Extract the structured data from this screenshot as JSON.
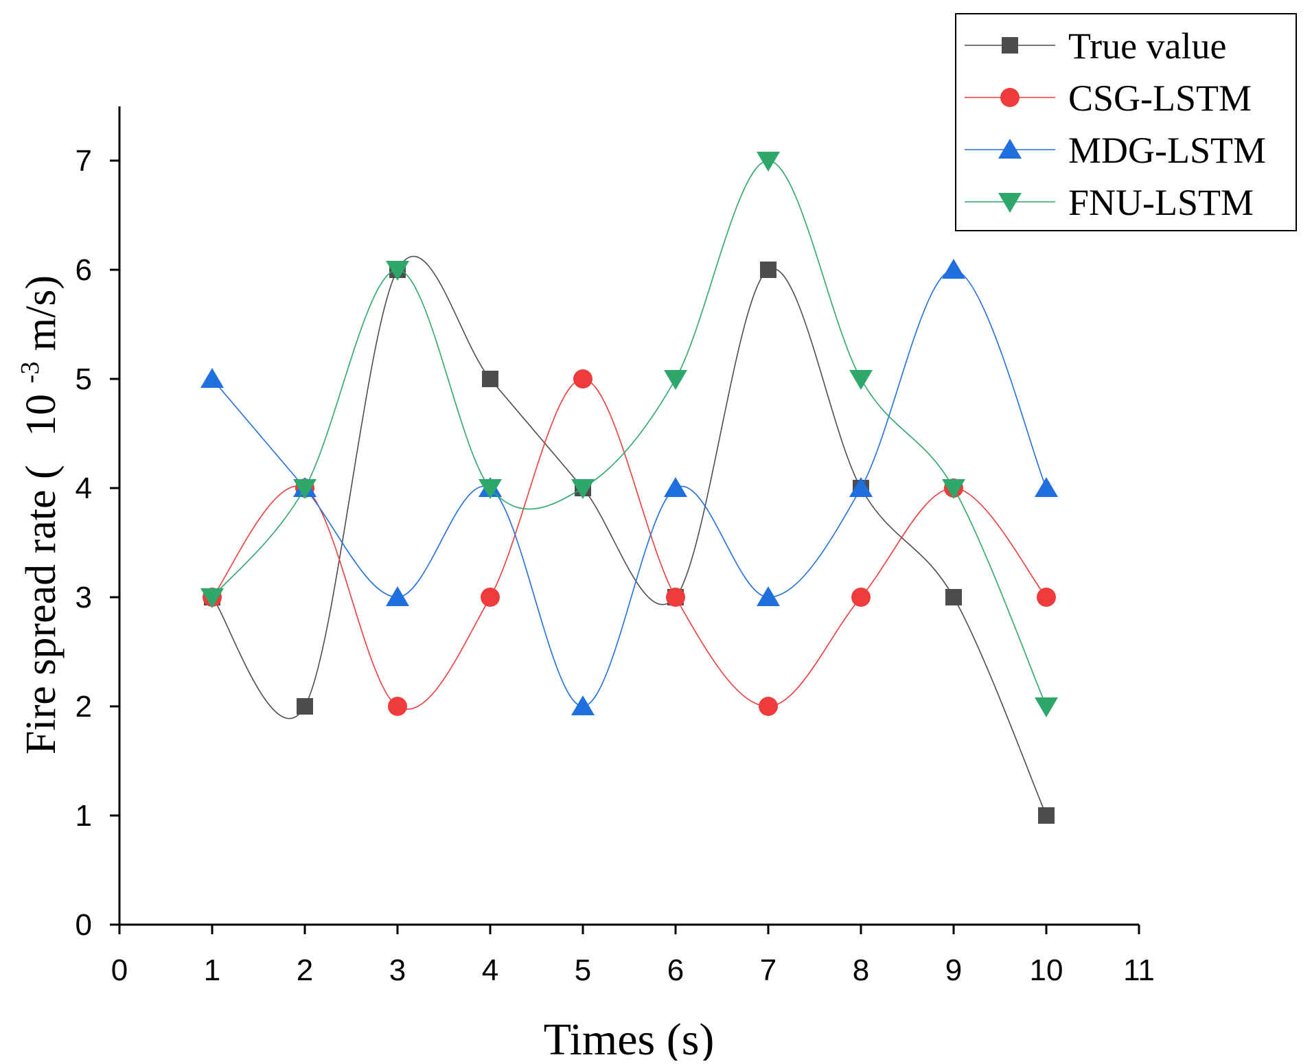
{
  "chart_data": {
    "type": "line",
    "title": "",
    "xlabel": "Times (s)",
    "ylabel": {
      "prefix": "Fire spread rate (",
      "base": "10",
      "exponent": "-3",
      "unit": "m/s)"
    },
    "xlim": [
      0,
      11
    ],
    "ylim": [
      0,
      7.5
    ],
    "x_ticks": [
      0,
      1,
      2,
      3,
      4,
      5,
      6,
      7,
      8,
      9,
      10,
      11
    ],
    "y_ticks": [
      0,
      1,
      2,
      3,
      4,
      5,
      6,
      7
    ],
    "grid": false,
    "legend_position": "top-right",
    "x": [
      1,
      2,
      3,
      4,
      5,
      6,
      7,
      8,
      9,
      10
    ],
    "series": [
      {
        "name": "True value",
        "marker": "square",
        "color": "#4d4d4d",
        "values": [
          3,
          2,
          6,
          5,
          4,
          3,
          6,
          4,
          3,
          1
        ]
      },
      {
        "name": "CSG-LSTM",
        "marker": "circle",
        "color": "#ee3b3b",
        "values": [
          3,
          4,
          2,
          3,
          5,
          3,
          2,
          3,
          4,
          3
        ]
      },
      {
        "name": "MDG-LSTM",
        "marker": "triangle-up",
        "color": "#1f6fdf",
        "values": [
          5,
          4,
          3,
          4,
          2,
          4,
          3,
          4,
          6,
          4
        ]
      },
      {
        "name": "FNU-LSTM",
        "marker": "triangle-down",
        "color": "#2ea86a",
        "values": [
          3,
          4,
          6,
          4,
          4,
          5,
          7,
          5,
          4,
          2
        ]
      }
    ]
  }
}
